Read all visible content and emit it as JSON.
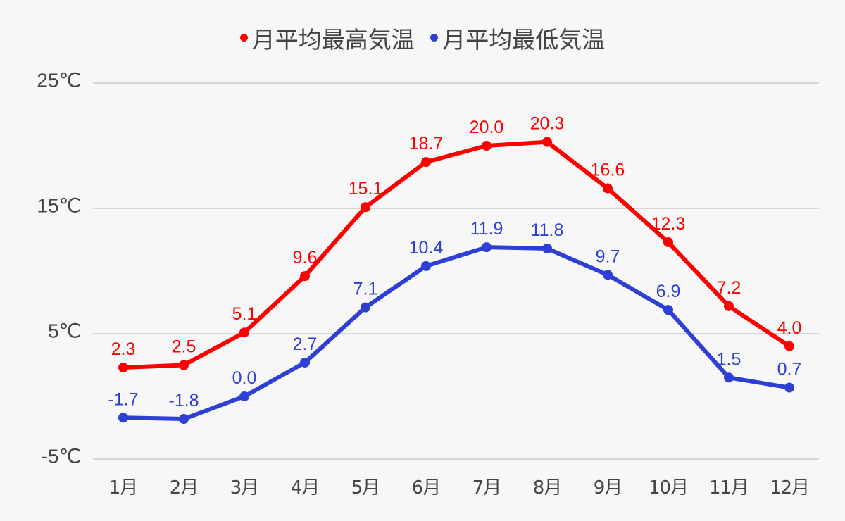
{
  "legend": {
    "high_label": "月平均最高気温",
    "low_label": "月平均最低気温"
  },
  "colors": {
    "high": "#ff0000",
    "low": "#2e3fd6",
    "grid": "#cccccc",
    "text": "#444444",
    "background": "#f7f7f7"
  },
  "y_axis": {
    "ticks": [
      25,
      15,
      5,
      -5
    ],
    "tick_labels": [
      "25℃",
      "15℃",
      "5℃",
      "-5℃"
    ]
  },
  "x_axis": {
    "tick_labels": [
      "1月",
      "2月",
      "3月",
      "4月",
      "5月",
      "6月",
      "7月",
      "8月",
      "9月",
      "10月",
      "11月",
      "12月"
    ]
  },
  "chart_data": {
    "type": "line",
    "title": "",
    "xlabel": "",
    "ylabel": "",
    "categories": [
      "1月",
      "2月",
      "3月",
      "4月",
      "5月",
      "6月",
      "7月",
      "8月",
      "9月",
      "10月",
      "11月",
      "12月"
    ],
    "series": [
      {
        "name": "月平均最高気温",
        "color": "#ff0000",
        "values": [
          2.3,
          2.5,
          5.1,
          9.6,
          15.1,
          18.7,
          20.0,
          20.3,
          16.6,
          12.3,
          7.2,
          4.0
        ],
        "labels": [
          "2.3",
          "2.5",
          "5.1",
          "9.6",
          "15.1",
          "18.7",
          "20.0",
          "20.3",
          "16.6",
          "12.3",
          "7.2",
          "4.0"
        ]
      },
      {
        "name": "月平均最低気温",
        "color": "#2e3fd6",
        "values": [
          -1.7,
          -1.8,
          0.0,
          2.7,
          7.1,
          10.4,
          11.9,
          11.8,
          9.7,
          6.9,
          1.5,
          0.7
        ],
        "labels": [
          "-1.7",
          "-1.8",
          "0.0",
          "2.7",
          "7.1",
          "10.4",
          "11.9",
          "11.8",
          "9.7",
          "6.9",
          "1.5",
          "0.7"
        ]
      }
    ],
    "ylim": [
      -5,
      25
    ],
    "yticks": [
      -5,
      5,
      15,
      25
    ],
    "grid": true,
    "legend_position": "top"
  }
}
